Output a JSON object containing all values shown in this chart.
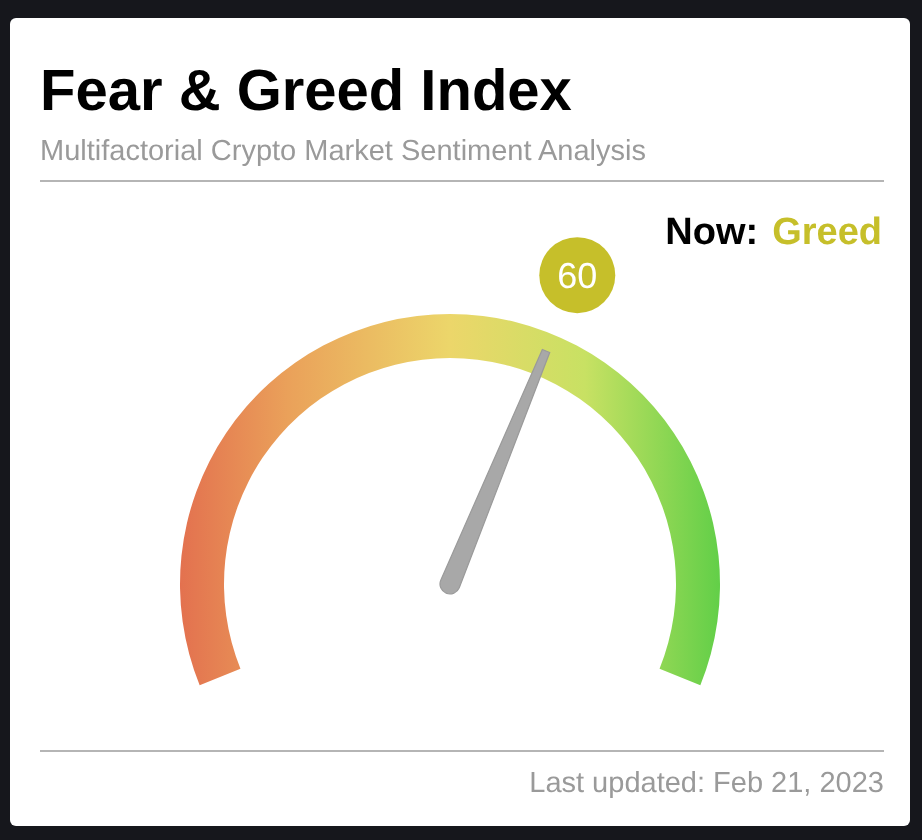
{
  "chart_data": {
    "type": "other",
    "title": "Fear & Greed Index",
    "subtitle": "Multifactorial Crypto Market Sentiment Analysis",
    "values": [
      60
    ],
    "data_labels": true,
    "colors": [
      "#c6bf2a"
    ],
    "annotations": [
      "Now:",
      "Greed",
      "Last updated: Feb 21, 2023"
    ]
  }
}
